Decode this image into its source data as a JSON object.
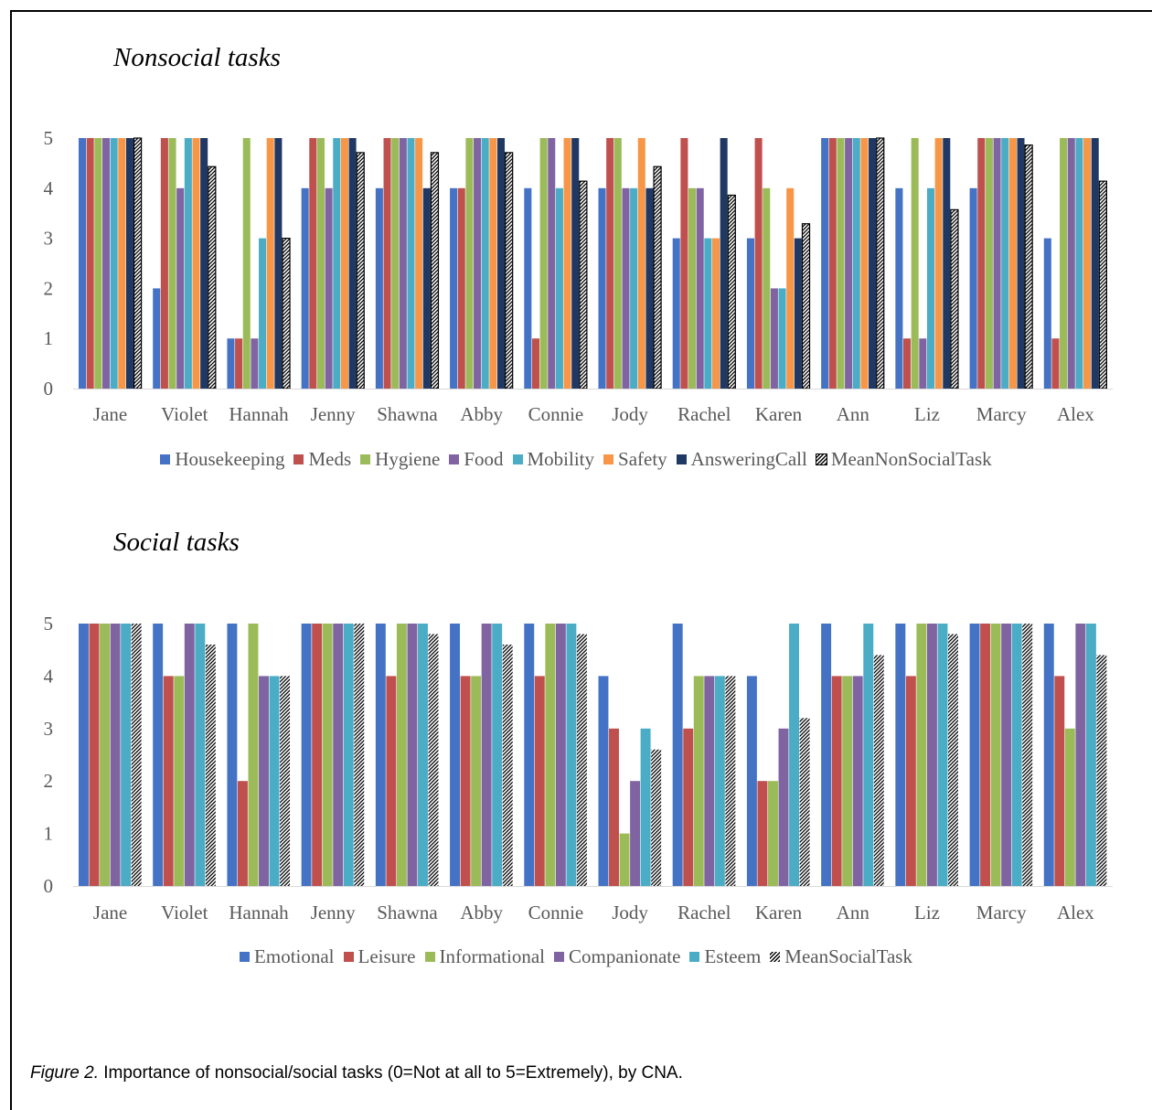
{
  "chart_data": [
    {
      "type": "bar",
      "title": "Nonsocial tasks",
      "categories": [
        "Jane",
        "Violet",
        "Hannah",
        "Jenny",
        "Shawna",
        "Abby",
        "Connie",
        "Jody",
        "Rachel",
        "Karen",
        "Ann",
        "Liz",
        "Marcy",
        "Alex"
      ],
      "ylim": [
        0,
        5
      ],
      "yticks": [
        "0",
        "1",
        "2",
        "3",
        "4",
        "5"
      ],
      "grid": false,
      "legend_position": "bottom",
      "series": [
        {
          "name": "Housekeeping",
          "color": "#4472C4",
          "values": [
            5,
            2,
            1,
            4,
            4,
            4,
            4,
            4,
            3,
            3,
            5,
            4,
            4,
            3
          ]
        },
        {
          "name": "Meds",
          "color": "#C0504D",
          "values": [
            5,
            5,
            1,
            5,
            5,
            4,
            1,
            5,
            5,
            5,
            5,
            1,
            5,
            1
          ]
        },
        {
          "name": "Hygiene",
          "color": "#9BBB59",
          "values": [
            5,
            5,
            5,
            5,
            5,
            5,
            5,
            5,
            4,
            4,
            5,
            5,
            5,
            5
          ]
        },
        {
          "name": "Food",
          "color": "#8064A2",
          "values": [
            5,
            4,
            1,
            4,
            5,
            5,
            5,
            4,
            4,
            2,
            5,
            1,
            5,
            5
          ]
        },
        {
          "name": "Mobility",
          "color": "#4BACC6",
          "values": [
            5,
            5,
            3,
            5,
            5,
            5,
            4,
            4,
            3,
            2,
            5,
            4,
            5,
            5
          ]
        },
        {
          "name": "Safety",
          "color": "#F79646",
          "values": [
            5,
            5,
            5,
            5,
            5,
            5,
            5,
            5,
            3,
            4,
            5,
            5,
            5,
            5
          ]
        },
        {
          "name": "AnsweringCall",
          "color": "#1F3864",
          "values": [
            5,
            5,
            5,
            5,
            4,
            5,
            5,
            4,
            5,
            3,
            5,
            5,
            5,
            5
          ]
        },
        {
          "name": "MeanNonSocialTask",
          "color": "#000000",
          "pattern": "hatch-outlined",
          "values": [
            5,
            4.43,
            3,
            4.71,
            4.71,
            4.71,
            4.14,
            4.43,
            3.86,
            3.29,
            5,
            3.57,
            4.86,
            4.14
          ]
        }
      ]
    },
    {
      "type": "bar",
      "title": "Social tasks",
      "categories": [
        "Jane",
        "Violet",
        "Hannah",
        "Jenny",
        "Shawna",
        "Abby",
        "Connie",
        "Jody",
        "Rachel",
        "Karen",
        "Ann",
        "Liz",
        "Marcy",
        "Alex"
      ],
      "ylim": [
        0,
        5
      ],
      "yticks": [
        "0",
        "1",
        "2",
        "3",
        "4",
        "5"
      ],
      "grid": false,
      "legend_position": "bottom",
      "series": [
        {
          "name": "Emotional",
          "color": "#4472C4",
          "values": [
            5,
            5,
            5,
            5,
            5,
            5,
            5,
            4,
            5,
            4,
            5,
            5,
            5,
            5
          ]
        },
        {
          "name": "Leisure",
          "color": "#C0504D",
          "values": [
            5,
            4,
            2,
            5,
            4,
            4,
            4,
            3,
            3,
            2,
            4,
            4,
            5,
            4
          ]
        },
        {
          "name": "Informational",
          "color": "#9BBB59",
          "values": [
            5,
            4,
            5,
            5,
            5,
            4,
            5,
            1,
            4,
            2,
            4,
            5,
            5,
            3
          ]
        },
        {
          "name": "Companionate",
          "color": "#8064A2",
          "values": [
            5,
            5,
            4,
            5,
            5,
            5,
            5,
            2,
            4,
            3,
            4,
            5,
            5,
            5
          ]
        },
        {
          "name": "Esteem",
          "color": "#4BACC6",
          "values": [
            5,
            5,
            4,
            5,
            5,
            5,
            5,
            3,
            4,
            5,
            5,
            5,
            5,
            5
          ]
        },
        {
          "name": "MeanSocialTask",
          "color": "#000000",
          "pattern": "hatch",
          "values": [
            5,
            4.6,
            4,
            5,
            4.8,
            4.6,
            4.8,
            2.6,
            4,
            3.2,
            4.4,
            4.8,
            5,
            4.4
          ]
        }
      ]
    }
  ],
  "caption": {
    "label": "Figure 2.",
    "text": " Importance of nonsocial/social tasks (0=Not at all to 5=Extremely), by CNA."
  }
}
